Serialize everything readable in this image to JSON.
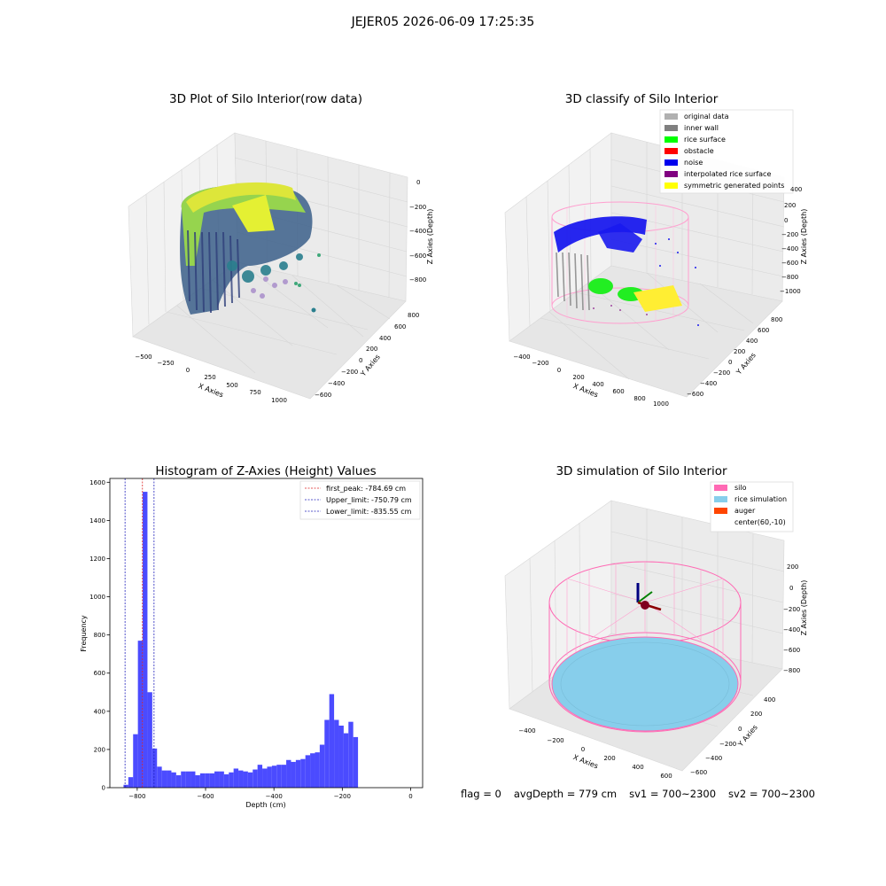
{
  "suptitle": "JEJER05 2026-06-09 17:25:35",
  "colors": {
    "hist_bar": "#4b4bff",
    "first_peak": "#dd2222",
    "limit": "#2222bb",
    "silo": "#ff69b4",
    "rice": "#87ceeb",
    "auger": "#ff4500",
    "noise": "#0000ee",
    "rice_surface": "#00ff00",
    "inner_wall": "#808080",
    "symmetric": "#ffff00"
  },
  "panels": {
    "raw": {
      "title": "3D Plot of Silo Interior(row data)",
      "xlabel": "X Axies",
      "ylabel": "Y Axies",
      "zlabel": "Z Axies (Depth)",
      "xticks": [
        "−500",
        "−250",
        "0",
        "250",
        "500",
        "750",
        "1000"
      ],
      "yticks": [
        "800",
        "600",
        "400",
        "200",
        "0",
        "−200",
        "−400",
        "−600"
      ],
      "zticks": [
        "0",
        "−200",
        "−400",
        "−600",
        "−800"
      ]
    },
    "classify": {
      "title": "3D classify of Silo Interior",
      "xlabel": "X Axies",
      "ylabel": "Y Axies",
      "zlabel": "Z Axies (Depth)",
      "xticks": [
        "−400",
        "−200",
        "0",
        "200",
        "400",
        "600",
        "800",
        "1000"
      ],
      "yticks": [
        "800",
        "600",
        "400",
        "200",
        "0",
        "−200",
        "−400",
        "−600"
      ],
      "zticks": [
        "400",
        "200",
        "0",
        "−200",
        "−400",
        "−600",
        "−800",
        "−1000"
      ],
      "legend": [
        {
          "label": "original data",
          "color": "#b0b0b0"
        },
        {
          "label": "inner wall",
          "color": "#808080"
        },
        {
          "label": "rice surface",
          "color": "#00ff00"
        },
        {
          "label": "obstacle",
          "color": "#ff0000"
        },
        {
          "label": "noise",
          "color": "#0000ee"
        },
        {
          "label": "interpolated rice surface",
          "color": "#800080"
        },
        {
          "label": "symmetric generated points",
          "color": "#ffff00"
        }
      ]
    },
    "simulation": {
      "title": "3D simulation of Silo Interior",
      "xlabel": "X Axies",
      "ylabel": "Y Axies",
      "zlabel": "Z Axies (Depth)",
      "xticks": [
        "−400",
        "−200",
        "0",
        "200",
        "400",
        "600"
      ],
      "yticks": [
        "400",
        "200",
        "0",
        "−200",
        "−400",
        "−600"
      ],
      "zticks": [
        "200",
        "0",
        "−200",
        "−400",
        "−600",
        "−800"
      ],
      "legend": [
        {
          "label": "silo",
          "color": "#ff69b4"
        },
        {
          "label": "rice simulation",
          "color": "#87ceeb"
        },
        {
          "label": "auger",
          "color": "#ff4500"
        },
        {
          "label": "center(60,-10)",
          "color": ""
        }
      ]
    }
  },
  "chart_data": {
    "type": "bar",
    "title": "Histogram of Z-Axies (Height) Values",
    "xlabel": "Depth (cm)",
    "ylabel": "Frequency",
    "xlim": [
      -880,
      35
    ],
    "ylim": [
      0,
      1620
    ],
    "xticks": [
      -800,
      -600,
      -400,
      -200,
      0
    ],
    "xtick_labels": [
      "−800",
      "−600",
      "−400",
      "−200",
      "0"
    ],
    "yticks": [
      0,
      200,
      400,
      600,
      800,
      1000,
      1200,
      1400,
      1600
    ],
    "bin_start": -840,
    "bin_width": 14,
    "values": [
      15,
      55,
      280,
      770,
      1550,
      500,
      205,
      110,
      90,
      90,
      80,
      65,
      85,
      85,
      85,
      65,
      75,
      75,
      75,
      85,
      85,
      70,
      80,
      100,
      90,
      85,
      80,
      95,
      120,
      100,
      110,
      115,
      120,
      120,
      145,
      135,
      145,
      150,
      170,
      180,
      185,
      225,
      355,
      490,
      355,
      325,
      285,
      345,
      265
    ],
    "vlines": [
      {
        "name": "first_peak",
        "label": "first_peak: -784.69 cm",
        "x": -784.69,
        "color": "#dd2222"
      },
      {
        "name": "upper-limit",
        "label": "Upper_limit: -750.79 cm",
        "x": -750.79,
        "color": "#2222bb"
      },
      {
        "name": "lower-limit",
        "label": "Lower_limit: -835.55 cm",
        "x": -835.55,
        "color": "#2222bb"
      }
    ],
    "grid": false,
    "legend_position": "top-right"
  },
  "status": {
    "flag": "flag = 0",
    "avg_depth": "avgDepth = 779 cm",
    "sv1": "sv1 = 700~2300",
    "sv2": "sv2 = 700~2300"
  }
}
